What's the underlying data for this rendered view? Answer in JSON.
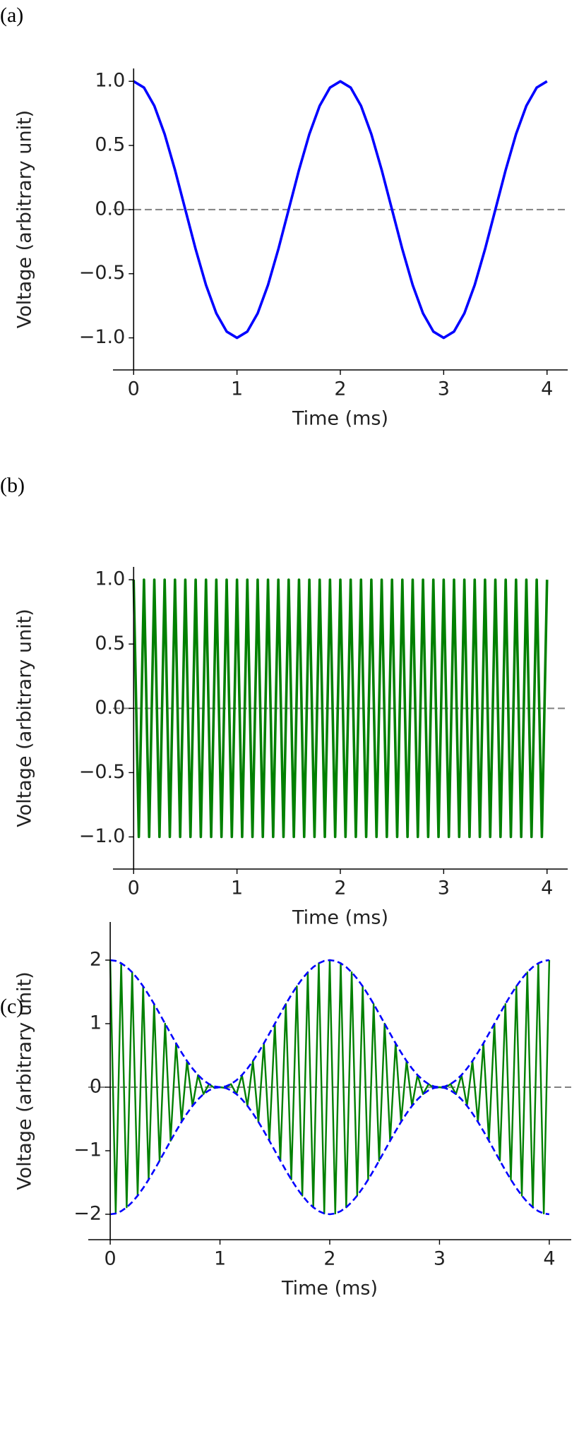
{
  "chart_data": [
    {
      "type": "line",
      "label": "(a)",
      "xlabel": "Time (ms)",
      "ylabel": "Voltage (arbitrary unit)",
      "x": [
        0,
        0.1,
        0.2,
        0.3,
        0.4,
        0.5,
        0.6,
        0.7,
        0.8,
        0.9,
        1,
        1.1,
        1.2,
        1.3,
        1.4,
        1.5,
        1.6,
        1.7,
        1.8,
        1.9,
        2,
        2.1,
        2.2,
        2.3,
        2.4,
        2.5,
        2.6,
        2.7,
        2.8,
        2.9,
        3,
        3.1,
        3.2,
        3.3,
        3.4,
        3.5,
        3.6,
        3.7,
        3.8,
        3.9,
        4
      ],
      "series": [
        {
          "color": "#0000ff",
          "values": [
            1,
            0.951,
            0.809,
            0.588,
            0.309,
            0,
            -0.309,
            -0.588,
            -0.809,
            -0.951,
            -1,
            -0.951,
            -0.809,
            -0.588,
            -0.309,
            0,
            0.309,
            0.588,
            0.809,
            0.951,
            1,
            0.951,
            0.809,
            0.588,
            0.309,
            0,
            -0.309,
            -0.588,
            -0.809,
            -0.951,
            -1,
            -0.951,
            -0.809,
            -0.588,
            -0.309,
            0,
            0.309,
            0.588,
            0.809,
            0.951,
            1
          ]
        }
      ],
      "hline": 0,
      "xlim": [
        -0.2,
        4.2
      ],
      "ylim": [
        -1.25,
        1.1
      ],
      "xticks": [
        0,
        1,
        2,
        3,
        4
      ],
      "yticks": [
        {
          "value": 1,
          "label": "1.0"
        },
        {
          "value": 0.5,
          "label": "0.5"
        },
        {
          "value": 0,
          "label": "0.0"
        },
        {
          "value": -0.5,
          "label": "−0.5"
        },
        {
          "value": -1,
          "label": "−1.0"
        }
      ]
    },
    {
      "type": "line",
      "label": "(b)",
      "xlabel": "Time (ms)",
      "ylabel": "Voltage (arbitrary unit)",
      "x": [
        0,
        0.05,
        0.1,
        0.15,
        0.2,
        0.25,
        0.3,
        0.35,
        0.4,
        0.45,
        0.5,
        0.55,
        0.6,
        0.65,
        0.7,
        0.75,
        0.8,
        0.85,
        0.9,
        0.95,
        1,
        1.05,
        1.1,
        1.15,
        1.2,
        1.25,
        1.3,
        1.35,
        1.4,
        1.45,
        1.5,
        1.55,
        1.6,
        1.65,
        1.7,
        1.75,
        1.8,
        1.85,
        1.9,
        1.95,
        2,
        2.05,
        2.1,
        2.15,
        2.2,
        2.25,
        2.3,
        2.35,
        2.4,
        2.45,
        2.5,
        2.55,
        2.6,
        2.65,
        2.7,
        2.75,
        2.8,
        2.85,
        2.9,
        2.95,
        3,
        3.05,
        3.1,
        3.15,
        3.2,
        3.25,
        3.3,
        3.35,
        3.4,
        3.45,
        3.5,
        3.55,
        3.6,
        3.65,
        3.7,
        3.75,
        3.8,
        3.85,
        3.9,
        3.95,
        4
      ],
      "series": [
        {
          "color": "#008000",
          "values": [
            1,
            -1,
            1,
            -1,
            1,
            -1,
            1,
            -1,
            1,
            -1,
            1,
            -1,
            1,
            -1,
            1,
            -1,
            1,
            -1,
            1,
            -1,
            1,
            -1,
            1,
            -1,
            1,
            -1,
            1,
            -1,
            1,
            -1,
            1,
            -1,
            1,
            -1,
            1,
            -1,
            1,
            -1,
            1,
            -1,
            1,
            -1,
            1,
            -1,
            1,
            -1,
            1,
            -1,
            1,
            -1,
            1,
            -1,
            1,
            -1,
            1,
            -1,
            1,
            -1,
            1,
            -1,
            1,
            -1,
            1,
            -1,
            1,
            -1,
            1,
            -1,
            1,
            -1,
            1,
            -1,
            1,
            -1,
            1,
            -1,
            1,
            -1,
            1,
            -1,
            1
          ]
        }
      ],
      "hline": 0,
      "xlim": [
        -0.2,
        4.2
      ],
      "ylim": [
        -1.25,
        1.1
      ],
      "xticks": [
        0,
        1,
        2,
        3,
        4
      ],
      "yticks": [
        {
          "value": 1,
          "label": "1.0"
        },
        {
          "value": 0.5,
          "label": "0.5"
        },
        {
          "value": 0,
          "label": "0.0"
        },
        {
          "value": -0.5,
          "label": "−0.5"
        },
        {
          "value": -1,
          "label": "−1.0"
        }
      ]
    },
    {
      "type": "line",
      "label": "(c)",
      "xlabel": "Time (ms)",
      "ylabel": "Voltage (arbitrary unit)",
      "x": [
        0,
        0.05,
        0.1,
        0.15,
        0.2,
        0.25,
        0.3,
        0.35,
        0.4,
        0.45,
        0.5,
        0.55,
        0.6,
        0.65,
        0.7,
        0.75,
        0.8,
        0.85,
        0.9,
        0.95,
        1,
        1.05,
        1.1,
        1.15,
        1.2,
        1.25,
        1.3,
        1.35,
        1.4,
        1.45,
        1.5,
        1.55,
        1.6,
        1.65,
        1.7,
        1.75,
        1.8,
        1.85,
        1.9,
        1.95,
        2,
        2.05,
        2.1,
        2.15,
        2.2,
        2.25,
        2.3,
        2.35,
        2.4,
        2.45,
        2.5,
        2.55,
        2.6,
        2.65,
        2.7,
        2.75,
        2.8,
        2.85,
        2.9,
        2.95,
        3,
        3.05,
        3.1,
        3.15,
        3.2,
        3.25,
        3.3,
        3.35,
        3.4,
        3.45,
        3.5,
        3.55,
        3.6,
        3.65,
        3.7,
        3.75,
        3.8,
        3.85,
        3.9,
        3.95,
        4
      ],
      "series": [
        {
          "color": "#008000",
          "values": [
            2,
            -1.988,
            1.951,
            -1.891,
            1.809,
            -1.707,
            1.588,
            -1.454,
            1.309,
            -1.156,
            1,
            -0.844,
            0.691,
            -0.546,
            0.412,
            -0.293,
            0.191,
            -0.109,
            0.049,
            -0.012,
            0,
            -0.012,
            0.049,
            -0.109,
            0.191,
            -0.293,
            0.412,
            -0.546,
            0.691,
            -0.844,
            1,
            -1.156,
            1.309,
            -1.454,
            1.588,
            -1.707,
            1.809,
            -1.891,
            1.951,
            -1.988,
            2,
            -1.988,
            1.951,
            -1.891,
            1.809,
            -1.707,
            1.588,
            -1.454,
            1.309,
            -1.156,
            1,
            -0.844,
            0.691,
            -0.546,
            0.412,
            -0.293,
            0.191,
            -0.109,
            0.049,
            -0.012,
            0,
            -0.012,
            0.049,
            -0.109,
            0.191,
            -0.293,
            0.412,
            -0.546,
            0.691,
            -0.844,
            1,
            -1.156,
            1.309,
            -1.454,
            1.588,
            -1.707,
            1.809,
            -1.891,
            1.951,
            -1.988,
            2
          ]
        },
        {
          "color": "#0000ff",
          "linestyle": "dashed",
          "values": [
            2,
            1.988,
            1.951,
            1.891,
            1.809,
            1.707,
            1.588,
            1.454,
            1.309,
            1.156,
            1,
            0.844,
            0.691,
            0.546,
            0.412,
            0.293,
            0.191,
            0.109,
            0.049,
            0.012,
            0,
            0.012,
            0.049,
            0.109,
            0.191,
            0.293,
            0.412,
            0.546,
            0.691,
            0.844,
            1,
            1.156,
            1.309,
            1.454,
            1.588,
            1.707,
            1.809,
            1.891,
            1.951,
            1.988,
            2,
            1.988,
            1.951,
            1.891,
            1.809,
            1.707,
            1.588,
            1.454,
            1.309,
            1.156,
            1,
            0.844,
            0.691,
            0.546,
            0.412,
            0.293,
            0.191,
            0.109,
            0.049,
            0.012,
            0,
            0.012,
            0.049,
            0.109,
            0.191,
            0.293,
            0.412,
            0.546,
            0.691,
            0.844,
            1,
            1.156,
            1.309,
            1.454,
            1.588,
            1.707,
            1.809,
            1.891,
            1.951,
            1.988,
            2
          ]
        },
        {
          "color": "#0000ff",
          "linestyle": "dashed",
          "values": [
            -2,
            -1.988,
            -1.951,
            -1.891,
            -1.809,
            -1.707,
            -1.588,
            -1.454,
            -1.309,
            -1.156,
            -1,
            -0.844,
            -0.691,
            -0.546,
            -0.412,
            -0.293,
            -0.191,
            -0.109,
            -0.049,
            -0.012,
            0,
            -0.012,
            -0.049,
            -0.109,
            -0.191,
            -0.293,
            -0.412,
            -0.546,
            -0.691,
            -0.844,
            -1,
            -1.156,
            -1.309,
            -1.454,
            -1.588,
            -1.707,
            -1.809,
            -1.891,
            -1.951,
            -1.988,
            -2,
            -1.988,
            -1.951,
            -1.891,
            -1.809,
            -1.707,
            -1.588,
            -1.454,
            -1.309,
            -1.156,
            -1,
            -0.844,
            -0.691,
            -0.546,
            -0.412,
            -0.293,
            -0.191,
            -0.109,
            -0.049,
            -0.012,
            0,
            -0.012,
            -0.049,
            -0.109,
            -0.191,
            -0.293,
            -0.412,
            -0.546,
            -0.691,
            -0.844,
            -1,
            -1.156,
            -1.309,
            -1.454,
            -1.588,
            -1.707,
            -1.809,
            -1.891,
            -1.951,
            -1.988,
            -2
          ]
        }
      ],
      "hline": 0,
      "xlim": [
        -0.2,
        4.2
      ],
      "ylim": [
        -2.4,
        2.6
      ],
      "xticks": [
        0,
        1,
        2,
        3,
        4
      ],
      "yticks": [
        2,
        1,
        0,
        {
          "value": -1,
          "label": "−1"
        },
        {
          "value": -2,
          "label": "−2"
        }
      ]
    }
  ]
}
